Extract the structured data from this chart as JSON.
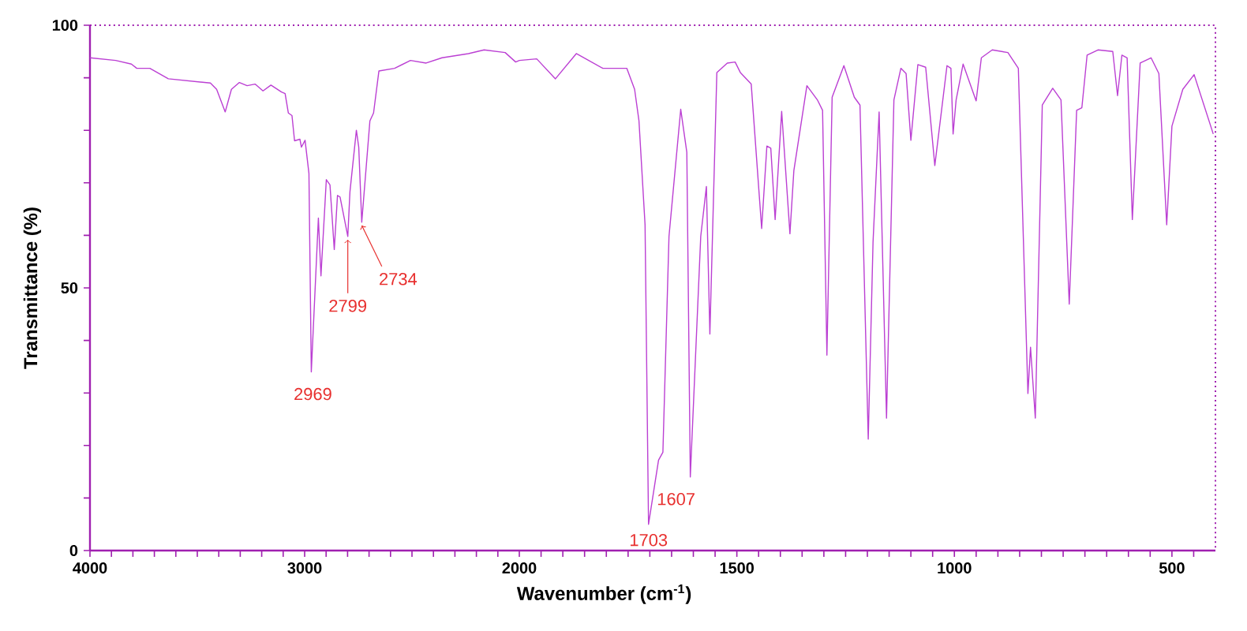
{
  "chart_data": [
    {
      "type": "line",
      "ylabel": "Transmittance (%)",
      "x": [
        4000,
        3880,
        3807,
        3782,
        3721,
        3635,
        3439,
        3410,
        3370,
        3341,
        3304,
        3268,
        3231,
        3194,
        3157,
        3108,
        3091,
        3076,
        3059,
        3047,
        3022,
        3015,
        2998,
        2980,
        2969,
        2936,
        2924,
        2899,
        2882,
        2862,
        2847,
        2835,
        2799,
        2789,
        2759,
        2748,
        2734,
        2696,
        2679,
        2654,
        2581,
        2507,
        2434,
        2360,
        2237,
        2164,
        2066,
        2017,
        2000
      ],
      "values": [
        93.8,
        93.3,
        92.6,
        91.8,
        91.8,
        89.8,
        89.0,
        87.8,
        83.5,
        87.8,
        89.1,
        88.5,
        88.8,
        87.5,
        88.6,
        87.3,
        87.0,
        83.3,
        82.8,
        78.0,
        78.3,
        76.8,
        78.1,
        71.8,
        34,
        63.3,
        52.3,
        70.6,
        69.6,
        57.3,
        67.6,
        67.3,
        59.8,
        68.3,
        80.0,
        76.8,
        62.5,
        81.8,
        83.3,
        91.3,
        91.8,
        93.3,
        92.8,
        93.8,
        94.6,
        95.3,
        94.8,
        93.0,
        93.3
      ],
      "color": "#bb3fd3",
      "xlim": [
        4000,
        2000
      ],
      "xticks": [
        4000,
        {
          "value": 3900,
          "label": null
        },
        {
          "value": 3800,
          "label": null
        },
        {
          "value": 3700,
          "label": null
        },
        {
          "value": 3600,
          "label": null
        },
        {
          "value": 3500,
          "label": null
        },
        {
          "value": 3400,
          "label": null
        },
        {
          "value": 3300,
          "label": null
        },
        {
          "value": 3200,
          "label": null
        },
        {
          "value": 3100,
          "label": null
        },
        3000,
        {
          "value": 2900,
          "label": null
        },
        {
          "value": 2800,
          "label": null
        },
        {
          "value": 2700,
          "label": null
        },
        {
          "value": 2600,
          "label": null
        },
        {
          "value": 2500,
          "label": null
        },
        {
          "value": 2400,
          "label": null
        },
        {
          "value": 2300,
          "label": null
        },
        {
          "value": 2200,
          "label": null
        },
        {
          "value": 2100,
          "label": null
        }
      ],
      "ylim": [
        0,
        100
      ],
      "yticks": [
        0,
        {
          "value": 10,
          "label": null
        },
        {
          "value": 20,
          "label": null
        },
        {
          "value": 30,
          "label": null
        },
        {
          "value": 40,
          "label": null
        },
        50,
        {
          "value": 60,
          "label": null
        },
        {
          "value": 70,
          "label": null
        },
        {
          "value": 80,
          "label": null
        },
        {
          "value": 90,
          "label": null
        },
        100
      ],
      "annotations": [
        {
          "text": "2969",
          "x": 2969,
          "y": 34
        },
        {
          "text": "2799",
          "x": 2799,
          "y": 59.8
        },
        {
          "text": "2734",
          "x": 2734,
          "y": 62.5
        }
      ],
      "marker": "none",
      "line_style": "solid"
    },
    {
      "type": "line",
      "xlabel": "Wavenumber (cm$^{-1}$)",
      "x": [
        2000,
        1960,
        1917,
        1869,
        1808,
        1753,
        1735,
        1725,
        1711,
        1703,
        1680,
        1670,
        1656,
        1629,
        1615,
        1607,
        1583,
        1570,
        1562,
        1546,
        1522,
        1504,
        1492,
        1467,
        1443,
        1431,
        1422,
        1412,
        1397,
        1378,
        1369,
        1339,
        1315,
        1303,
        1293,
        1281,
        1254,
        1230,
        1217,
        1198,
        1187,
        1173,
        1156,
        1139,
        1123,
        1111,
        1100,
        1084,
        1066,
        1045,
        1017,
        1008,
        1003,
        996,
        980,
        950,
        938,
        913,
        877,
        853,
        831,
        825,
        814,
        798,
        774,
        755,
        736,
        719,
        707,
        695,
        670,
        636,
        625,
        615,
        603,
        591,
        573,
        548,
        530,
        512,
        500,
        475,
        449,
        405
      ],
      "values": [
        93.3,
        93.6,
        89.8,
        94.6,
        91.8,
        91.8,
        87.8,
        81.8,
        62,
        5,
        17.2,
        18.7,
        59.8,
        84,
        75.8,
        14,
        59.8,
        69.3,
        41.2,
        91,
        92.8,
        93.0,
        91,
        88.8,
        61.3,
        77,
        76.6,
        63,
        83.6,
        60.3,
        72.3,
        88.5,
        85.8,
        83.8,
        37.2,
        86.3,
        92.3,
        86.3,
        84.8,
        21.2,
        58.7,
        83.5,
        25.2,
        85.8,
        91.8,
        90.8,
        78.1,
        92.5,
        92.0,
        73.3,
        92.3,
        91.8,
        79.3,
        85.8,
        92.6,
        85.6,
        93.8,
        95.3,
        94.8,
        91.8,
        29.9,
        38.7,
        25.2,
        84.8,
        88,
        85.8,
        46.9,
        83.8,
        84.3,
        94.3,
        95.3,
        95.0,
        86.6,
        94.3,
        93.8,
        63,
        92.8,
        93.8,
        90.8,
        62,
        80.8,
        87.8,
        90.6,
        79.3
      ],
      "color": "#bb3fd3",
      "xlim": [
        2000,
        400
      ],
      "xticks": [
        2000,
        {
          "value": 1950,
          "label": null
        },
        {
          "value": 1900,
          "label": null
        },
        {
          "value": 1850,
          "label": null
        },
        {
          "value": 1800,
          "label": null
        },
        {
          "value": 1750,
          "label": null
        },
        {
          "value": 1700,
          "label": null
        },
        {
          "value": 1650,
          "label": null
        },
        {
          "value": 1600,
          "label": null
        },
        {
          "value": 1550,
          "label": null
        },
        1500,
        {
          "value": 1450,
          "label": null
        },
        {
          "value": 1400,
          "label": null
        },
        {
          "value": 1350,
          "label": null
        },
        {
          "value": 1300,
          "label": null
        },
        {
          "value": 1250,
          "label": null
        },
        {
          "value": 1200,
          "label": null
        },
        {
          "value": 1150,
          "label": null
        },
        {
          "value": 1100,
          "label": null
        },
        {
          "value": 1050,
          "label": null
        },
        1000,
        {
          "value": 950,
          "label": null
        },
        {
          "value": 900,
          "label": null
        },
        {
          "value": 850,
          "label": null
        },
        {
          "value": 800,
          "label": null
        },
        {
          "value": 750,
          "label": null
        },
        {
          "value": 700,
          "label": null
        },
        {
          "value": 650,
          "label": null
        },
        {
          "value": 600,
          "label": null
        },
        {
          "value": 550,
          "label": null
        },
        500,
        {
          "value": 450,
          "label": null
        }
      ],
      "ylim": [
        0,
        100
      ],
      "tick_labels": "x",
      "annotations": [
        {
          "text": "1703",
          "x": 1703,
          "y": 5
        },
        {
          "text": "1607",
          "x": 1607,
          "y": 14
        }
      ],
      "marker": "none",
      "line_style": "solid"
    }
  ]
}
